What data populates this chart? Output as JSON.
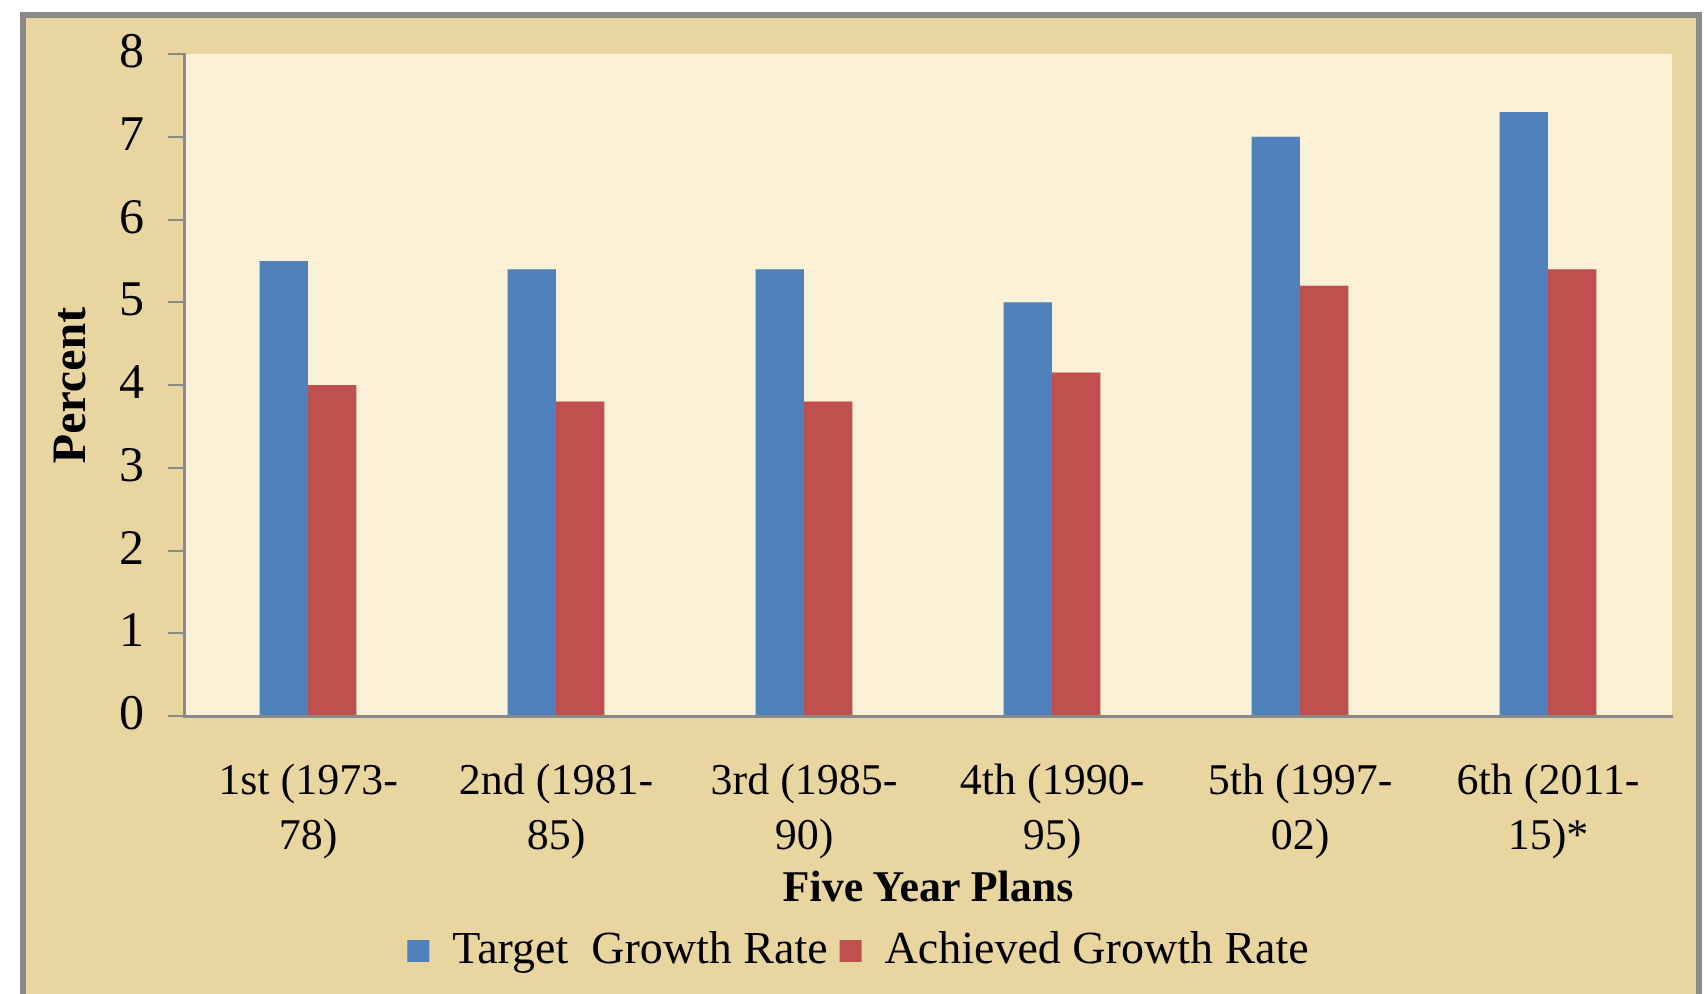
{
  "chart_data": {
    "type": "bar",
    "xlabel": "Five Year Plans",
    "ylabel": "Percent",
    "categories": [
      "1st (1973-78)",
      "2nd (1981-85)",
      "3rd (1985-90)",
      "4th (1990-95)",
      "5th (1997-02)",
      "6th (2011-15)*"
    ],
    "series": [
      {
        "name": "Target  Growth Rate",
        "color": "#4f81bd",
        "values": [
          5.5,
          5.4,
          5.4,
          5.0,
          7.0,
          7.3
        ]
      },
      {
        "name": "Achieved Growth Rate",
        "color": "#c0504d",
        "values": [
          4.0,
          3.8,
          3.8,
          4.15,
          5.2,
          5.4
        ]
      }
    ],
    "ylim": [
      0,
      8
    ],
    "yticks": [
      0,
      1,
      2,
      3,
      4,
      5,
      6,
      7,
      8
    ],
    "legend": "bottom"
  }
}
